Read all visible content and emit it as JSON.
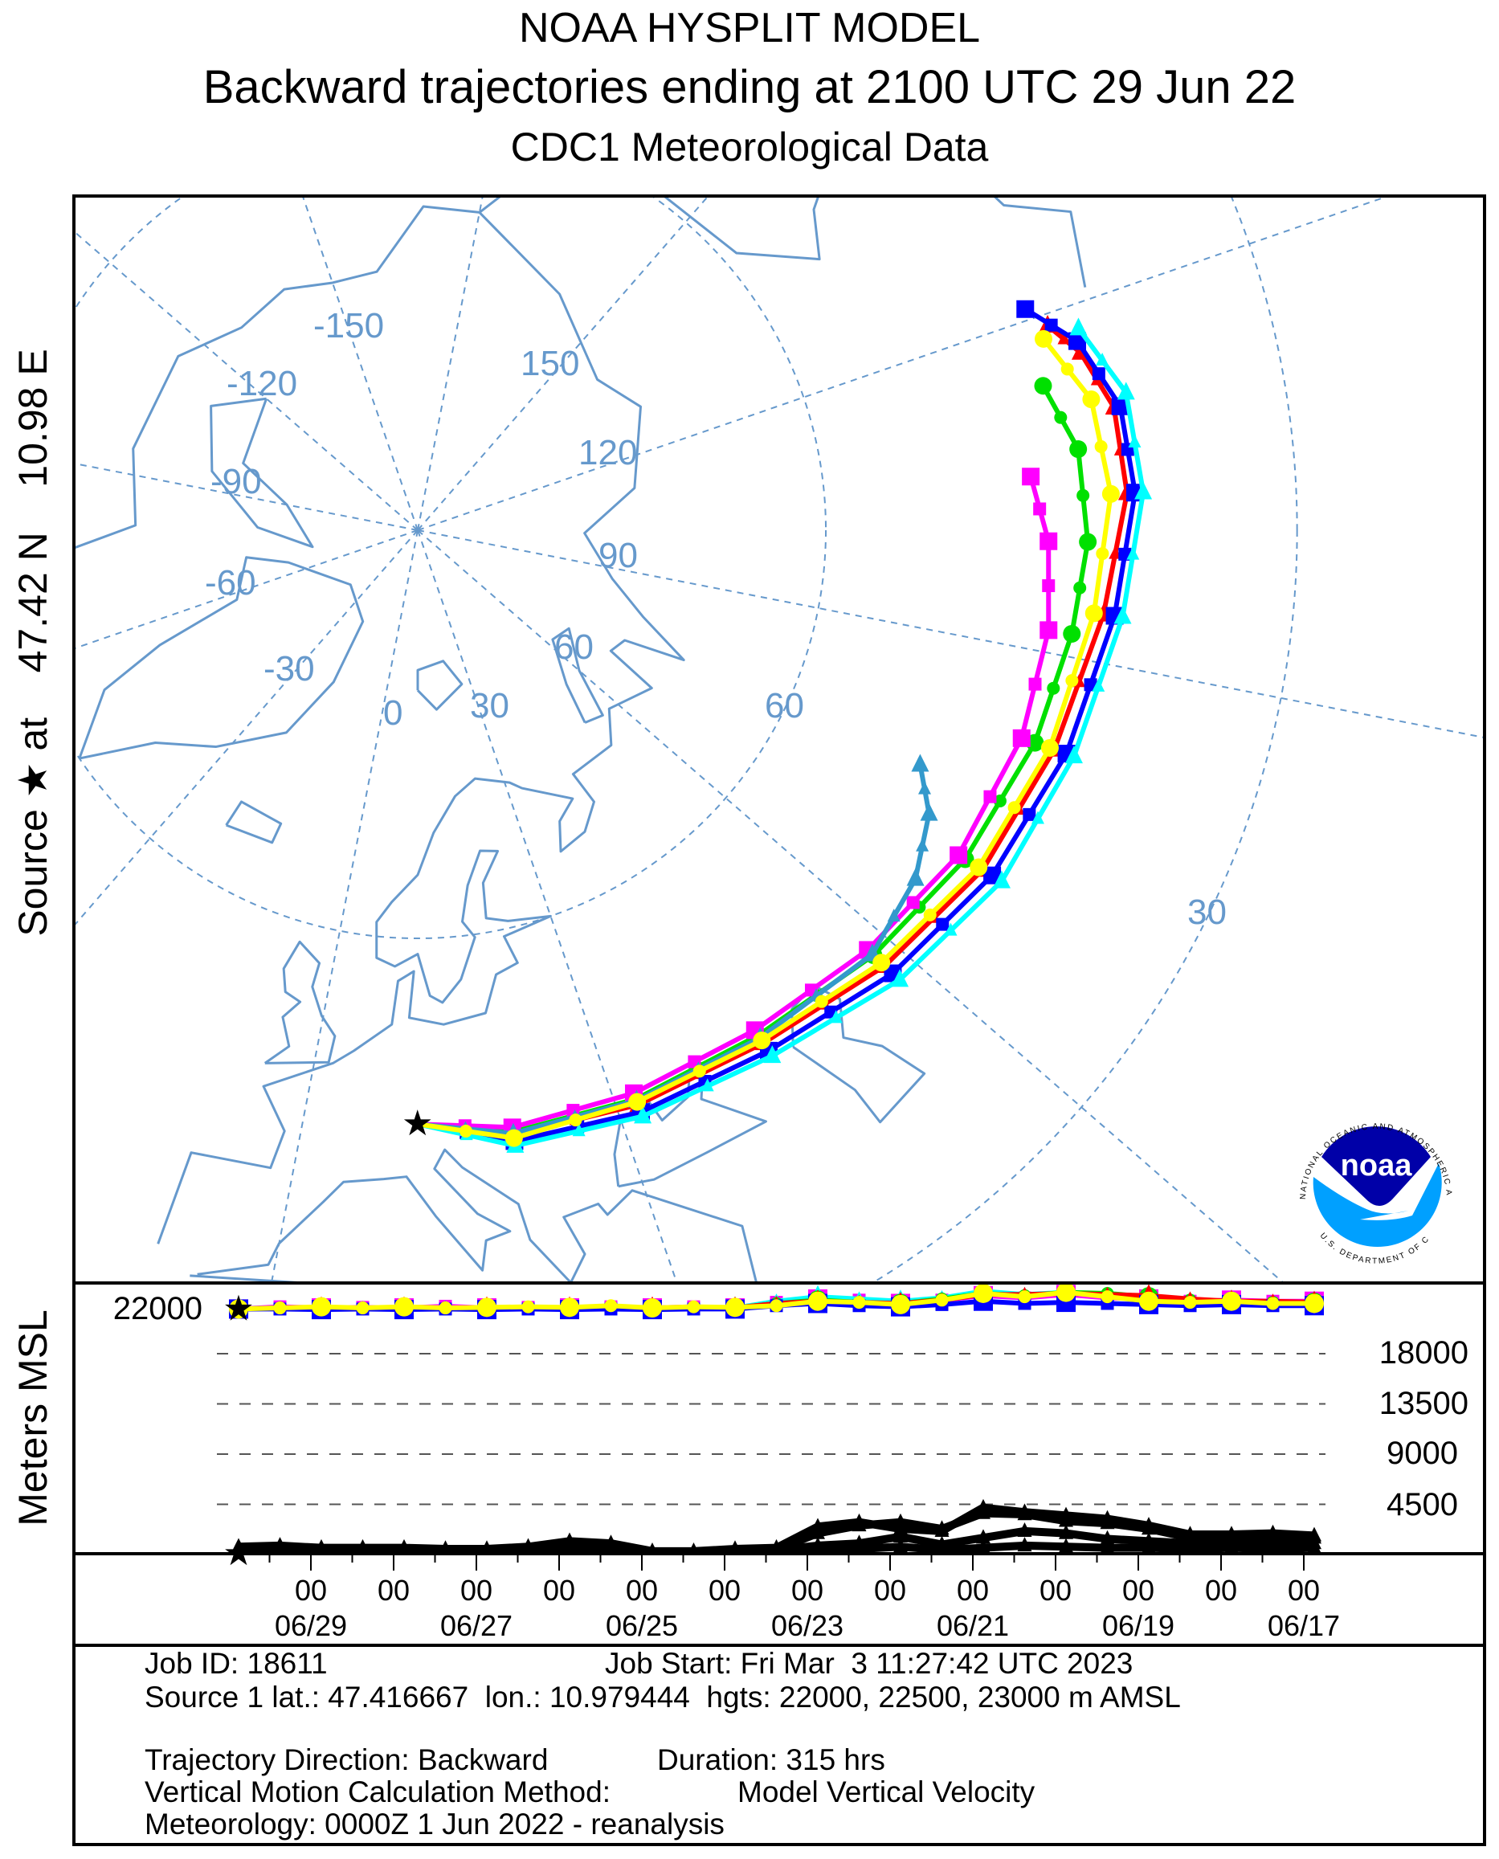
{
  "title": {
    "line1": "NOAA HYSPLIT MODEL",
    "line2": "Backward trajectories ending at 2100 UTC 29 Jun 22",
    "line3": "CDC1 Meteorological Data"
  },
  "source_label": "Source ★ at    47.42 N    10.98 E",
  "logo": {
    "text": "noaa",
    "ring_top": "NATIONAL OCEANIC AND ATMOSPHERIC ADMINISTRATION",
    "ring_bottom": "U.S. DEPARTMENT OF COMMERCE"
  },
  "colors": {
    "coast": "#6699cc",
    "red": "#ff0000",
    "blue": "#0000ff",
    "green": "#00e000",
    "cyan": "#00ffff",
    "magenta": "#ff00ff",
    "yellow": "#ffff00",
    "steel": "#3399cc",
    "noaa_dark": "#0000a8",
    "noaa_light": "#00a0ff"
  },
  "chart_data": [
    {
      "type": "map-trajectory",
      "projection": "polar stereographic",
      "graticule_labels": {
        "longitudes": [
          "-150",
          "150",
          "-120",
          "120",
          "-90",
          "90",
          "-60",
          "60",
          "-30",
          "30",
          "0"
        ],
        "latitudes": [
          "60",
          "30"
        ]
      },
      "source": {
        "lat": 47.42,
        "lon": 10.98
      },
      "series": [
        {
          "name": "red",
          "marker": "triangle",
          "points": [
            [
              11,
              47.4
            ],
            [
              20,
              46.2
            ],
            [
              32,
              46
            ],
            [
              45,
              45.8
            ],
            [
              58,
              44.5
            ],
            [
              70,
              43.2
            ],
            [
              82,
              42.3
            ],
            [
              94,
              41.2
            ],
            [
              104,
              40
            ],
            [
              111,
              40.2
            ],
            [
              116,
              41.5
            ],
            [
              119,
              43
            ]
          ]
        },
        {
          "name": "blue",
          "marker": "square",
          "points": [
            [
              11,
              47.4
            ],
            [
              20,
              45.8
            ],
            [
              32,
              45.5
            ],
            [
              45,
              45.2
            ],
            [
              58,
              43.8
            ],
            [
              70,
              42.5
            ],
            [
              82,
              41.5
            ],
            [
              94,
              40.5
            ],
            [
              104,
              39.5
            ],
            [
              111,
              39.8
            ],
            [
              117,
              41.5
            ],
            [
              121,
              44
            ]
          ]
        },
        {
          "name": "green",
          "marker": "circle",
          "points": [
            [
              11,
              47.4
            ],
            [
              20,
              46.4
            ],
            [
              32,
              46.4
            ],
            [
              45,
              46.4
            ],
            [
              58,
              45.5
            ],
            [
              70,
              44.5
            ],
            [
              82,
              43.6
            ],
            [
              92,
              43
            ],
            [
              100,
              42.5
            ],
            [
              108,
              42.8
            ],
            [
              114,
              44.3
            ]
          ]
        },
        {
          "name": "cyan",
          "marker": "triangle",
          "points": [
            [
              11,
              47.4
            ],
            [
              20,
              45.5
            ],
            [
              32,
              45.2
            ],
            [
              45,
              44.8
            ],
            [
              58,
              43.2
            ],
            [
              70,
              41.8
            ],
            [
              82,
              41
            ],
            [
              94,
              40
            ],
            [
              104,
              39
            ],
            [
              112,
              39.3
            ],
            [
              118,
              41.2
            ]
          ]
        },
        {
          "name": "magenta",
          "marker": "square",
          "points": [
            [
              11,
              47.4
            ],
            [
              20,
              46.7
            ],
            [
              32,
              46.8
            ],
            [
              45,
              46.8
            ],
            [
              58,
              46
            ],
            [
              70,
              45
            ],
            [
              82,
              44.5
            ],
            [
              92,
              44.5
            ],
            [
              100,
              45
            ],
            [
              106,
              46
            ]
          ]
        },
        {
          "name": "steel",
          "marker": "triangle",
          "points": [
            [
              11,
              47.4
            ],
            [
              20,
              46.3
            ],
            [
              32,
              46.3
            ],
            [
              45,
              46.2
            ],
            [
              58,
              45.6
            ],
            [
              66,
              46.5
            ],
            [
              72,
              48
            ],
            [
              76,
              50
            ]
          ]
        },
        {
          "name": "yellow",
          "marker": "circle",
          "points": [
            [
              11,
              47.4
            ],
            [
              20,
              46
            ],
            [
              32,
              46.2
            ],
            [
              45,
              46
            ],
            [
              58,
              44.8
            ],
            [
              70,
              43.5
            ],
            [
              82,
              42.6
            ],
            [
              94,
              41.8
            ],
            [
              104,
              41
            ],
            [
              112,
              41.5
            ],
            [
              118,
              43.5
            ]
          ]
        }
      ]
    },
    {
      "type": "line",
      "ylabel": "Meters MSL",
      "yticks": [
        "22000",
        "18000",
        "13500",
        "9000",
        "4500"
      ],
      "ylim": [
        0,
        24500
      ],
      "x_hours_back_step": 12,
      "xtick_hour_label": "00",
      "xtick_dates": [
        "06/29",
        "06/27",
        "06/25",
        "06/23",
        "06/21",
        "06/19",
        "06/17"
      ],
      "series": [
        {
          "name": "magenta",
          "marker": "square",
          "values": [
            22000,
            22200,
            22100,
            22150,
            22100,
            22250,
            22100,
            22150,
            22100,
            22200,
            22100,
            22200,
            22100,
            22600,
            22900,
            22800,
            22500,
            22800,
            23200,
            23000,
            23300,
            23000,
            22900,
            22700,
            22800,
            22700,
            22700
          ]
        },
        {
          "name": "cyan",
          "marker": "triangle",
          "values": [
            22000,
            22050,
            22000,
            22050,
            22000,
            22100,
            22000,
            22050,
            22000,
            22100,
            22000,
            22050,
            22100,
            22700,
            23100,
            22900,
            22700,
            23000,
            23600,
            23300,
            23500,
            23300,
            22900,
            22800,
            22700,
            22600,
            22600
          ]
        },
        {
          "name": "green",
          "marker": "circle",
          "values": [
            22000,
            22100,
            22050,
            22100,
            22050,
            22100,
            22050,
            22100,
            22050,
            22100,
            22050,
            22100,
            22100,
            22500,
            22800,
            22600,
            22500,
            22900,
            23400,
            23200,
            23500,
            23400,
            23100,
            22800,
            22700,
            22600,
            22600
          ]
        },
        {
          "name": "red",
          "marker": "triangle",
          "values": [
            22000,
            22050,
            22100,
            22050,
            22100,
            22050,
            22100,
            22050,
            22100,
            22050,
            22100,
            22050,
            22100,
            22500,
            22700,
            22600,
            22500,
            22800,
            23300,
            23300,
            23400,
            23300,
            23200,
            22900,
            22700,
            22700,
            22600
          ]
        },
        {
          "name": "blue",
          "marker": "square",
          "values": [
            22000,
            22000,
            21950,
            22000,
            21950,
            22000,
            21950,
            22000,
            21950,
            22000,
            21950,
            22000,
            22000,
            22300,
            22500,
            22300,
            22200,
            22400,
            22700,
            22500,
            22600,
            22500,
            22400,
            22300,
            22400,
            22300,
            22300
          ]
        },
        {
          "name": "yellow",
          "marker": "circle",
          "values": [
            22000,
            22100,
            22200,
            22100,
            22200,
            22100,
            22150,
            22200,
            22150,
            22300,
            22100,
            22200,
            22150,
            22300,
            22700,
            22600,
            22400,
            22800,
            23400,
            23100,
            23500,
            23100,
            22700,
            22600,
            22700,
            22500,
            22500
          ]
        }
      ],
      "lower_series": [
        {
          "name": "black-1",
          "values": [
            700,
            800,
            600,
            600,
            600,
            500,
            500,
            700,
            1200,
            1000,
            300,
            300,
            500,
            600,
            2500,
            2900,
            2300,
            2100,
            4200,
            3800,
            3500,
            3200,
            2600,
            1800,
            1800,
            1900,
            1700
          ]
        },
        {
          "name": "black-2",
          "values": [
            600,
            500,
            450,
            500,
            450,
            400,
            350,
            500,
            900,
            700,
            250,
            250,
            400,
            450,
            1900,
            2600,
            2900,
            2300,
            3700,
            3600,
            3000,
            2800,
            2300,
            1500,
            1500,
            1600,
            1500
          ]
        },
        {
          "name": "black-3",
          "values": [
            500,
            400,
            350,
            400,
            300,
            300,
            300,
            400,
            500,
            500,
            200,
            200,
            300,
            400,
            800,
            1000,
            1600,
            900,
            1500,
            2100,
            1900,
            1400,
            1200,
            1000,
            1000,
            900,
            1000
          ]
        },
        {
          "name": "black-4",
          "values": [
            400,
            300,
            300,
            300,
            250,
            250,
            250,
            300,
            300,
            300,
            200,
            200,
            250,
            300,
            400,
            500,
            700,
            400,
            600,
            800,
            700,
            600,
            600,
            500,
            600,
            500,
            600
          ]
        }
      ]
    }
  ],
  "info": {
    "job_id": "Job ID: 18611",
    "job_start": "Job Start: Fri Mar  3 11:27:42 UTC 2023",
    "source_line": "Source 1 lat.: 47.416667  lon.: 10.979444  hgts: 22000, 22500, 23000 m AMSL",
    "direction": "Trajectory Direction: Backward",
    "duration": "Duration: 315 hrs",
    "vmotion_label": "Vertical Motion Calculation Method:",
    "vmotion_value": "Model Vertical Velocity",
    "meteorology": "Meteorology: 0000Z 1 Jun 2022 - reanalysis"
  }
}
